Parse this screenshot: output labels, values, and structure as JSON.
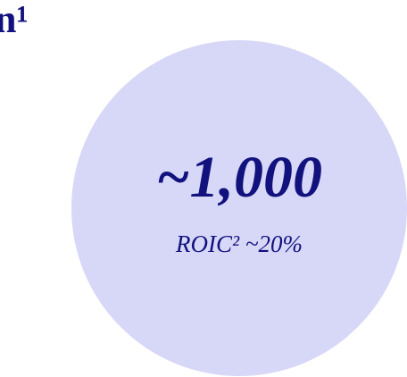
{
  "heading": "n¹",
  "circle": {
    "value": "~1,000",
    "note": "ROIC² ~20%"
  }
}
